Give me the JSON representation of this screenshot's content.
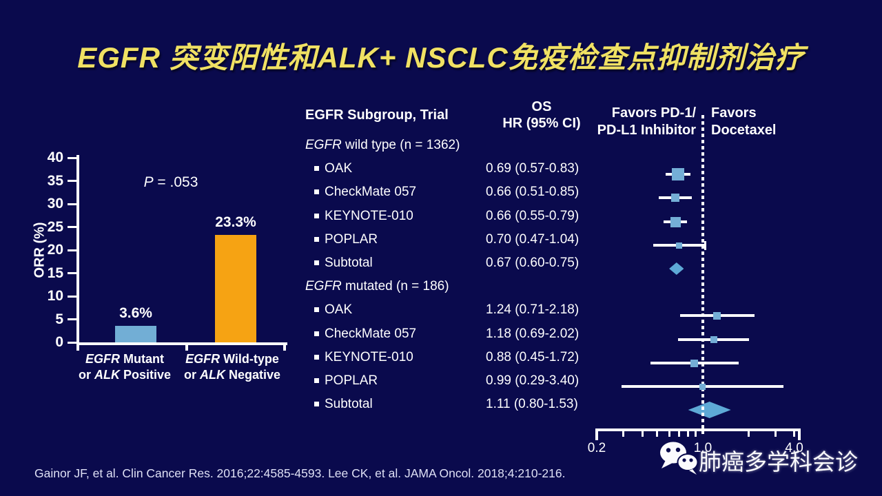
{
  "title": "EGFR 突变阳性和ALK+ NSCLC免疫检查点抑制剂治疗",
  "citation": "Gainor JF, et al. Clin Cancer Res. 2016;22:4585-4593. Lee CK, et al. JAMA Oncol. 2018;4:210-216.",
  "watermark": {
    "icon": "wechat",
    "text": "肺癌多学科会诊"
  },
  "colors": {
    "background": "#0a0a4d",
    "title_yellow": "#f0e163",
    "text_white": "#ffffff",
    "bar_blue": "#72aed5",
    "bar_orange": "#f6a313",
    "marker_blue": "#74aed6",
    "diamond_blue": "#5ea9d6",
    "citation_gray": "#dee0f5"
  },
  "chart_data": [
    {
      "type": "bar",
      "ylabel": "ORR (%)",
      "ylim": [
        0,
        40
      ],
      "yticks": [
        0,
        5,
        10,
        15,
        20,
        25,
        30,
        35,
        40
      ],
      "grid": false,
      "annotation": [
        {
          "t": "P",
          "i": true
        },
        {
          "t": " = .053",
          "i": false
        }
      ],
      "categories": [
        {
          "lines": [
            [
              {
                "t": "EGFR",
                "i": true
              },
              {
                "t": " Mutant",
                "i": false
              }
            ],
            [
              {
                "t": "or ",
                "i": false
              },
              {
                "t": "ALK",
                "i": true
              },
              {
                "t": " Positive",
                "i": false
              }
            ]
          ]
        },
        {
          "lines": [
            [
              {
                "t": "EGFR",
                "i": true
              },
              {
                "t": " Wild-type",
                "i": false
              }
            ],
            [
              {
                "t": "or ",
                "i": false
              },
              {
                "t": "ALK",
                "i": true
              },
              {
                "t": " Negative",
                "i": false
              }
            ]
          ]
        }
      ],
      "values": [
        3.6,
        23.3
      ],
      "value_labels": [
        "3.6%",
        "23.3%"
      ],
      "bar_colors": [
        "#72aed5",
        "#f6a313"
      ]
    },
    {
      "type": "forest",
      "table_headers": {
        "col1": "EGFR Subgroup, Trial",
        "col2_line1": "OS",
        "col2_line2": "HR (95% CI)"
      },
      "favors_left": [
        "Favors PD-1/",
        "PD-L1 Inhibitor"
      ],
      "favors_right": [
        "Favors",
        "Docetaxel"
      ],
      "axis": {
        "scale": "log",
        "min": 0.2,
        "max": 4.33,
        "reference": 1.0,
        "minor_ticks": [
          0.3,
          0.4,
          0.5,
          0.6,
          0.7,
          0.8,
          0.9,
          2,
          3,
          4
        ],
        "labels": [
          {
            "v": 0.2,
            "t": "0.2"
          },
          {
            "v": 1.0,
            "t": "1.0"
          },
          {
            "v": 4.0,
            "t": "4.0"
          }
        ]
      },
      "groups": [
        {
          "label": [
            {
              "t": "EGFR",
              "i": true
            },
            {
              "t": " wild type (n = 1362)",
              "i": false
            }
          ],
          "rows": [
            {
              "trial": "OAK",
              "hr_text": "0.69 (0.57-0.83)",
              "hr": 0.69,
              "lo": 0.57,
              "hi": 0.83,
              "marker": "square",
              "marker_size": 14
            },
            {
              "trial": "CheckMate 057",
              "hr_text": "0.66 (0.51-0.85)",
              "hr": 0.66,
              "lo": 0.51,
              "hi": 0.85,
              "marker": "square",
              "marker_size": 8
            },
            {
              "trial": "KEYNOTE-010",
              "hr_text": "0.66 (0.55-0.79)",
              "hr": 0.66,
              "lo": 0.55,
              "hi": 0.79,
              "marker": "square",
              "marker_size": 11
            },
            {
              "trial": "POPLAR",
              "hr_text": "0.70 (0.47-1.04)",
              "hr": 0.7,
              "lo": 0.47,
              "hi": 1.04,
              "marker": "square",
              "marker_size": 5,
              "cap_hi": true
            },
            {
              "trial": "Subtotal",
              "hr_text": "0.67 (0.60-0.75)",
              "hr": 0.67,
              "lo": 0.6,
              "hi": 0.75,
              "marker": "diamond",
              "marker_size": 18
            }
          ]
        },
        {
          "label": [
            {
              "t": "EGFR",
              "i": true
            },
            {
              "t": " mutated (n = 186)",
              "i": false
            }
          ],
          "rows": [
            {
              "trial": "OAK",
              "hr_text": "1.24 (0.71-2.18)",
              "hr": 1.24,
              "lo": 0.71,
              "hi": 2.18,
              "marker": "square",
              "marker_size": 7
            },
            {
              "trial": "CheckMate 057",
              "hr_text": "1.18 (0.69-2.02)",
              "hr": 1.18,
              "lo": 0.69,
              "hi": 2.02,
              "marker": "square",
              "marker_size": 6
            },
            {
              "trial": "KEYNOTE-010",
              "hr_text": "0.88 (0.45-1.72)",
              "hr": 0.88,
              "lo": 0.45,
              "hi": 1.72,
              "marker": "square",
              "marker_size": 7
            },
            {
              "trial": "POPLAR",
              "hr_text": "0.99 (0.29-3.40)",
              "hr": 0.99,
              "lo": 0.29,
              "hi": 3.4,
              "marker": "square",
              "marker_size": 5
            },
            {
              "trial": "Subtotal",
              "hr_text": "1.11 (0.80-1.53)",
              "hr": 1.11,
              "lo": 0.8,
              "hi": 1.53,
              "marker": "diamond",
              "marker_size": 24
            }
          ]
        }
      ]
    }
  ]
}
